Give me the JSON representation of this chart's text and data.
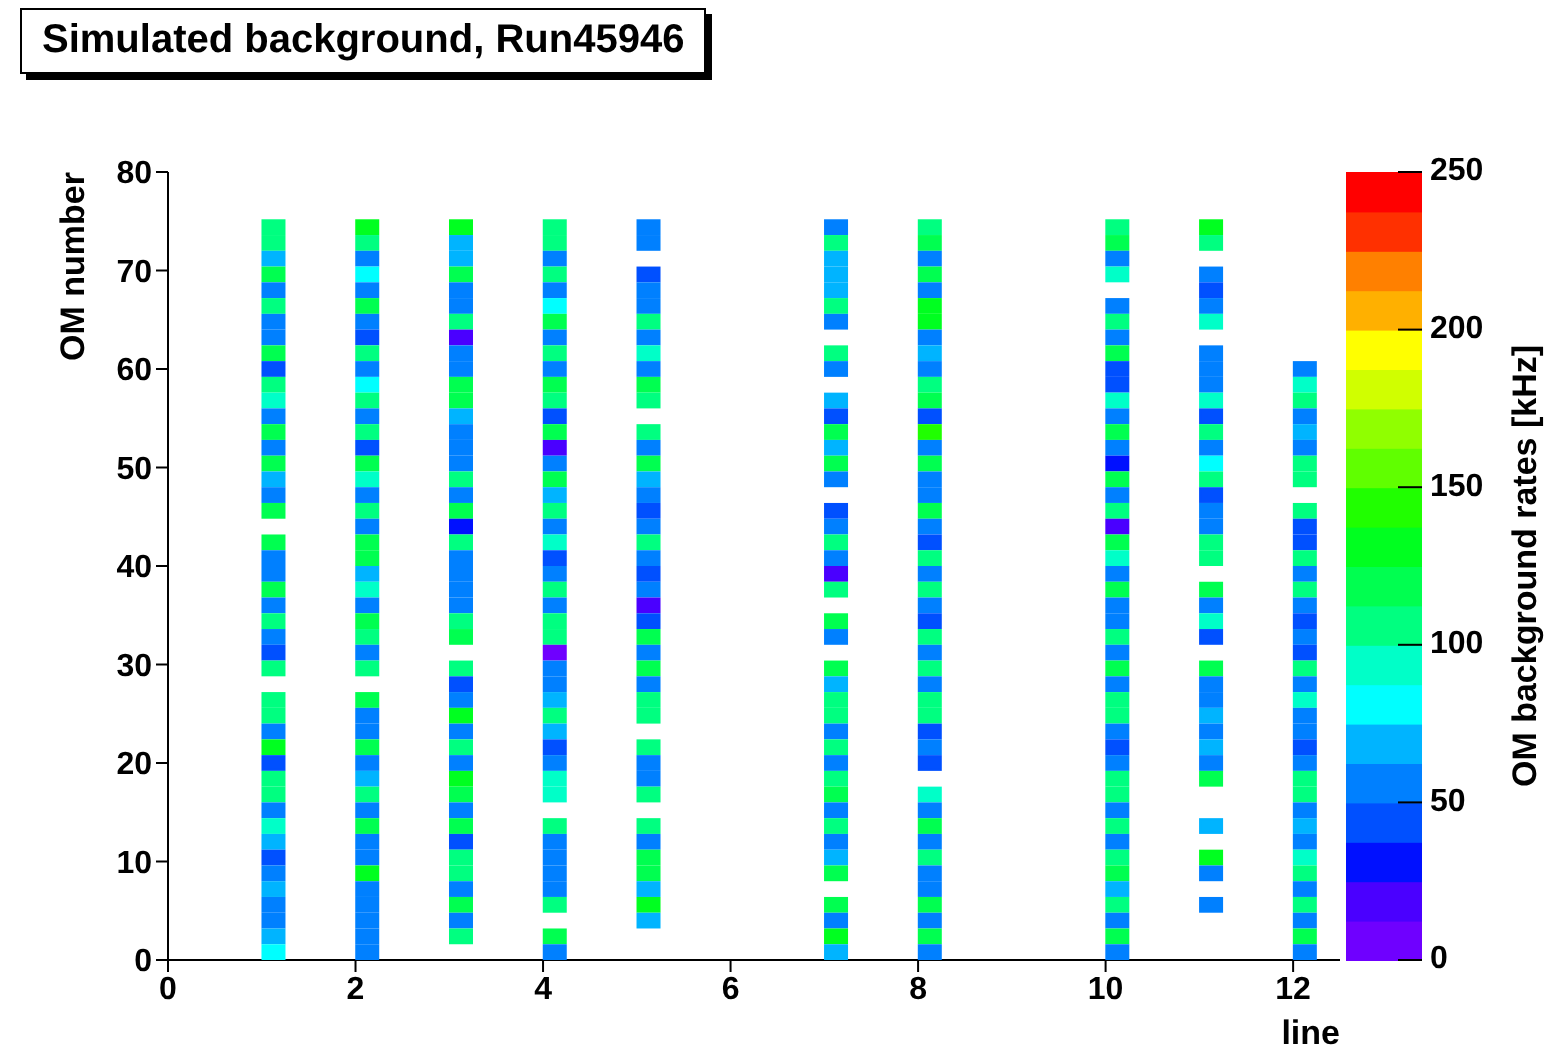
{
  "chart_data": {
    "type": "scatter",
    "title": "Simulated background, Run45946",
    "xlabel": "line",
    "ylabel": "OM number",
    "clabel": "OM background rates [kHz]",
    "marker": "square",
    "xlim": [
      0,
      12.5
    ],
    "xticks": [
      0,
      2,
      4,
      6,
      8,
      10,
      12
    ],
    "ylim": [
      0,
      80
    ],
    "yticks": [
      0,
      10,
      20,
      30,
      40,
      50,
      60,
      70,
      80
    ],
    "clim": [
      0,
      250
    ],
    "cticks": [
      0,
      50,
      100,
      150,
      200,
      250
    ],
    "series": [
      {
        "x": [
          1.125,
          1.125,
          1.125,
          1.125,
          1.125,
          1.125,
          1.125,
          1.125,
          1.125,
          1.125,
          1.125,
          1.125,
          1.125,
          1.125,
          1.125,
          1.125,
          1.125,
          1.125,
          1.125,
          null,
          1.125,
          1.125,
          1.125,
          1.125,
          1.125,
          1.125,
          1.125,
          1.125,
          1.125,
          null,
          1.125,
          1.125,
          1.125,
          1.125,
          1.125,
          1.125,
          1.125,
          1.125,
          1.125,
          1.125,
          1.125,
          1.125,
          1.125,
          1.125,
          1.125,
          1.125,
          1.125
        ],
        "values": [
          74.4,
          72.8,
          71.2,
          69.6,
          68,
          66.4,
          64.8,
          63.2,
          61.6,
          60,
          58.4,
          56.8,
          55.2,
          53.6,
          52,
          50.4,
          48.8,
          47.2,
          45.6,
          null,
          42.4,
          40.8,
          39.2,
          37.6,
          36,
          34.4,
          32.8,
          31.2,
          29.6,
          null,
          26.4,
          24.8,
          23.2,
          21.6,
          20,
          18.4,
          16.8,
          15.2,
          13.6,
          12,
          10.4,
          8.8,
          7.2,
          5.6,
          4,
          2.4,
          0.8
        ],
        "cvalues": [
          106,
          106,
          69,
          119,
          56,
          106,
          56,
          56,
          119,
          44,
          106,
          94,
          56,
          119,
          56,
          119,
          69,
          56,
          119,
          null,
          119,
          56,
          56,
          119,
          56,
          106,
          56,
          44,
          106,
          null,
          106,
          106,
          56,
          131,
          44,
          106,
          106,
          56,
          94,
          69,
          44,
          56,
          69,
          56,
          56,
          69,
          81
        ],
        "colors": [
          "#00ff80",
          "#00ff80",
          "#00b4ff",
          "#00ff50",
          "#0080ff",
          "#00ff80",
          "#0080ff",
          "#0080ff",
          "#00ff50",
          "#0050ff",
          "#00ff80",
          "#00ffc8",
          "#0080ff",
          "#00ff50",
          "#0080ff",
          "#00ff50",
          "#00b4ff",
          "#0080ff",
          "#00ff50",
          null,
          "#00ff50",
          "#0080ff",
          "#0080ff",
          "#00ff50",
          "#0080ff",
          "#00ff80",
          "#0080ff",
          "#0050ff",
          "#00ff80",
          null,
          "#00ff80",
          "#00ff80",
          "#0080ff",
          "#00ff20",
          "#0050ff",
          "#00ff80",
          "#00ff80",
          "#0080ff",
          "#00ffc8",
          "#00b4ff",
          "#0050ff",
          "#0080ff",
          "#00b4ff",
          "#0080ff",
          "#0080ff",
          "#00b4ff",
          "#00ffff"
        ]
      },
      {
        "x": [
          2.125,
          2.125,
          2.125,
          2.125,
          2.125,
          2.125,
          2.125,
          2.125,
          2.125,
          2.125,
          2.125,
          2.125,
          2.125,
          2.125,
          2.125,
          2.125,
          2.125,
          2.125,
          2.125,
          2.125,
          2.125,
          2.125,
          2.125,
          2.125,
          2.125,
          2.125,
          2.125,
          2.125,
          2.125,
          null,
          2.125,
          2.125,
          2.125,
          2.125,
          2.125,
          2.125,
          2.125,
          2.125,
          2.125,
          2.125,
          2.125,
          2.125,
          2.125,
          2.125,
          2.125,
          2.125,
          2.125
        ],
        "values": [
          74.4,
          72.8,
          71.2,
          69.6,
          68,
          66.4,
          64.8,
          63.2,
          61.6,
          60,
          58.4,
          56.8,
          55.2,
          53.6,
          52,
          50.4,
          48.8,
          47.2,
          45.6,
          44,
          42.4,
          40.8,
          39.2,
          37.6,
          36,
          34.4,
          32.8,
          31.2,
          29.6,
          null,
          26.4,
          24.8,
          23.2,
          21.6,
          20,
          18.4,
          16.8,
          15.2,
          13.6,
          12,
          10.4,
          8.8,
          7.2,
          5.6,
          4,
          2.4,
          0.8
        ],
        "cvalues": [
          131,
          106,
          56,
          81,
          56,
          119,
          56,
          44,
          106,
          56,
          81,
          106,
          56,
          106,
          44,
          119,
          94,
          56,
          106,
          56,
          119,
          119,
          69,
          94,
          56,
          119,
          106,
          56,
          106,
          null,
          119,
          56,
          56,
          119,
          56,
          69,
          106,
          56,
          119,
          56,
          56,
          131,
          56,
          56,
          56,
          56,
          56
        ],
        "colors": [
          "#00ff20",
          "#00ff80",
          "#0080ff",
          "#00ffff",
          "#0080ff",
          "#00ff50",
          "#0080ff",
          "#0050ff",
          "#00ff80",
          "#0080ff",
          "#00ffff",
          "#00ff80",
          "#0080ff",
          "#00ff80",
          "#0050ff",
          "#00ff50",
          "#00ffc8",
          "#0080ff",
          "#00ff80",
          "#0080ff",
          "#00ff50",
          "#00ff50",
          "#00b4ff",
          "#00ffc8",
          "#0080ff",
          "#00ff50",
          "#00ff80",
          "#0080ff",
          "#00ff80",
          null,
          "#00ff50",
          "#0080ff",
          "#0080ff",
          "#00ff50",
          "#0080ff",
          "#00b4ff",
          "#00ff80",
          "#0080ff",
          "#00ff50",
          "#0080ff",
          "#0080ff",
          "#00ff20",
          "#0080ff",
          "#0080ff",
          "#0080ff",
          "#0080ff",
          "#0080ff"
        ]
      },
      {
        "x": [
          3.125,
          3.125,
          3.125,
          3.125,
          3.125,
          3.125,
          3.125,
          3.125,
          3.125,
          3.125,
          3.125,
          3.125,
          3.125,
          3.125,
          3.125,
          3.125,
          3.125,
          3.125,
          3.125,
          3.125,
          3.125,
          3.125,
          3.125,
          3.125,
          3.125,
          3.125,
          3.125,
          null,
          3.125,
          3.125,
          3.125,
          3.125,
          3.125,
          3.125,
          3.125,
          3.125,
          3.125,
          3.125,
          3.125,
          3.125,
          3.125,
          3.125,
          3.125,
          3.125,
          3.125,
          3.125,
          null
        ],
        "values": [
          74.4,
          72.8,
          71.2,
          69.6,
          68,
          66.4,
          64.8,
          63.2,
          61.6,
          60,
          58.4,
          56.8,
          55.2,
          53.6,
          52,
          50.4,
          48.8,
          47.2,
          45.6,
          44,
          42.4,
          40.8,
          39.2,
          37.6,
          36,
          34.4,
          32.8,
          null,
          29.6,
          28,
          26.4,
          24.8,
          23.2,
          21.6,
          20,
          18.4,
          16.8,
          15.2,
          13.6,
          12,
          10.4,
          8.8,
          7.2,
          5.6,
          4,
          2.4,
          null
        ],
        "cvalues": [
          131,
          69,
          69,
          119,
          56,
          56,
          106,
          19,
          56,
          56,
          119,
          119,
          69,
          56,
          56,
          56,
          106,
          56,
          119,
          31,
          106,
          56,
          56,
          56,
          56,
          106,
          119,
          null,
          106,
          44,
          56,
          131,
          56,
          106,
          56,
          131,
          119,
          56,
          119,
          44,
          106,
          106,
          56,
          119,
          56,
          106,
          null
        ],
        "colors": [
          "#00ff20",
          "#00b4ff",
          "#00b4ff",
          "#00ff50",
          "#0080ff",
          "#0080ff",
          "#00ff80",
          "#4a00ff",
          "#0080ff",
          "#0080ff",
          "#00ff50",
          "#00ff50",
          "#00b4ff",
          "#0080ff",
          "#0080ff",
          "#0080ff",
          "#00ff80",
          "#0080ff",
          "#00ff50",
          "#0010ff",
          "#00ff80",
          "#0080ff",
          "#0080ff",
          "#0080ff",
          "#0080ff",
          "#00ff80",
          "#00ff50",
          null,
          "#00ff80",
          "#0050ff",
          "#0080ff",
          "#00ff20",
          "#0080ff",
          "#00ff80",
          "#0080ff",
          "#00ff20",
          "#00ff50",
          "#0080ff",
          "#00ff50",
          "#0050ff",
          "#00ff80",
          "#00ff80",
          "#0080ff",
          "#00ff50",
          "#0080ff",
          "#00ff80",
          null
        ]
      },
      {
        "x": [
          4.125,
          4.125,
          4.125,
          4.125,
          4.125,
          4.125,
          4.125,
          4.125,
          4.125,
          4.125,
          4.125,
          4.125,
          4.125,
          4.125,
          4.125,
          4.125,
          4.125,
          4.125,
          4.125,
          4.125,
          4.125,
          4.125,
          4.125,
          4.125,
          4.125,
          4.125,
          4.125,
          4.125,
          4.125,
          4.125,
          4.125,
          4.125,
          4.125,
          4.125,
          4.125,
          4.125,
          4.125,
          null,
          4.125,
          4.125,
          4.125,
          4.125,
          4.125,
          4.125,
          null,
          4.125,
          4.125
        ],
        "values": [
          74.4,
          72.8,
          71.2,
          69.6,
          68,
          66.4,
          64.8,
          63.2,
          61.6,
          60,
          58.4,
          56.8,
          55.2,
          53.6,
          52,
          50.4,
          48.8,
          47.2,
          45.6,
          44,
          42.4,
          40.8,
          39.2,
          37.6,
          36,
          34.4,
          32.8,
          31.2,
          29.6,
          28,
          26.4,
          24.8,
          23.2,
          21.6,
          20,
          18.4,
          16.8,
          null,
          13.6,
          12,
          10.4,
          8.8,
          7.2,
          5.6,
          null,
          2.4,
          0.8
        ],
        "cvalues": [
          106,
          106,
          56,
          106,
          56,
          81,
          119,
          56,
          106,
          56,
          119,
          106,
          44,
          119,
          19,
          56,
          119,
          69,
          106,
          56,
          94,
          44,
          56,
          106,
          56,
          106,
          106,
          6,
          56,
          56,
          69,
          106,
          69,
          44,
          56,
          94,
          94,
          null,
          106,
          56,
          56,
          56,
          56,
          106,
          null,
          119,
          56
        ],
        "colors": [
          "#00ff80",
          "#00ff80",
          "#0080ff",
          "#00ff80",
          "#0080ff",
          "#00ffff",
          "#00ff50",
          "#0080ff",
          "#00ff80",
          "#0080ff",
          "#00ff50",
          "#00ff80",
          "#0050ff",
          "#00ff50",
          "#4a00ff",
          "#0080ff",
          "#00ff50",
          "#00b4ff",
          "#00ff80",
          "#0080ff",
          "#00ffc8",
          "#0050ff",
          "#0080ff",
          "#00ff80",
          "#0080ff",
          "#00ff80",
          "#00ff80",
          "#6f00ff",
          "#0080ff",
          "#0080ff",
          "#00b4ff",
          "#00ff80",
          "#00b4ff",
          "#0050ff",
          "#0080ff",
          "#00ffc8",
          "#00ffc8",
          null,
          "#00ff80",
          "#0080ff",
          "#0080ff",
          "#0080ff",
          "#0080ff",
          "#00ff80",
          null,
          "#00ff50",
          "#0080ff"
        ]
      },
      {
        "x": [
          5.125,
          5.125,
          null,
          5.125,
          5.125,
          5.125,
          5.125,
          5.125,
          5.125,
          5.125,
          5.125,
          5.125,
          null,
          5.125,
          5.125,
          5.125,
          5.125,
          5.125,
          5.125,
          5.125,
          5.125,
          5.125,
          5.125,
          5.125,
          5.125,
          5.125,
          5.125,
          5.125,
          5.125,
          5.125,
          5.125,
          5.125,
          null,
          5.125,
          5.125,
          5.125,
          5.125,
          null,
          5.125,
          5.125,
          5.125,
          5.125,
          5.125,
          5.125,
          5.125,
          null,
          null
        ],
        "values": [
          74.4,
          72.8,
          null,
          69.6,
          68,
          66.4,
          64.8,
          63.2,
          61.6,
          60,
          58.4,
          56.8,
          null,
          53.6,
          52,
          50.4,
          48.8,
          47.2,
          45.6,
          44,
          42.4,
          40.8,
          39.2,
          37.6,
          36,
          34.4,
          32.8,
          31.2,
          29.6,
          28,
          26.4,
          24.8,
          null,
          21.6,
          20,
          18.4,
          16.8,
          null,
          13.6,
          12,
          10.4,
          8.8,
          7.2,
          5.6,
          4,
          null,
          null
        ],
        "cvalues": [
          56,
          56,
          null,
          44,
          56,
          56,
          106,
          56,
          94,
          56,
          119,
          106,
          null,
          106,
          56,
          119,
          69,
          56,
          44,
          56,
          106,
          56,
          44,
          56,
          19,
          44,
          119,
          56,
          119,
          56,
          106,
          106,
          null,
          106,
          56,
          56,
          106,
          null,
          106,
          56,
          119,
          119,
          69,
          131,
          69,
          null,
          null
        ],
        "colors": [
          "#0080ff",
          "#0080ff",
          null,
          "#0050ff",
          "#0080ff",
          "#0080ff",
          "#00ff80",
          "#0080ff",
          "#00ffc8",
          "#0080ff",
          "#00ff50",
          "#00ff80",
          null,
          "#00ff80",
          "#0080ff",
          "#00ff50",
          "#00b4ff",
          "#0080ff",
          "#0050ff",
          "#0080ff",
          "#00ff80",
          "#0080ff",
          "#0050ff",
          "#0080ff",
          "#4a00ff",
          "#0050ff",
          "#00ff50",
          "#0080ff",
          "#00ff50",
          "#0080ff",
          "#00ff80",
          "#00ff80",
          null,
          "#00ff80",
          "#0080ff",
          "#0080ff",
          "#00ff80",
          null,
          "#00ff80",
          "#0080ff",
          "#00ff50",
          "#00ff50",
          "#00b4ff",
          "#00ff20",
          "#00b4ff",
          null,
          null
        ]
      },
      {
        "x": [
          7.125,
          7.125,
          7.125,
          7.125,
          7.125,
          7.125,
          7.125,
          null,
          7.125,
          7.125,
          null,
          7.125,
          7.125,
          7.125,
          7.125,
          7.125,
          7.125,
          null,
          7.125,
          7.125,
          7.125,
          7.125,
          7.125,
          7.125,
          null,
          7.125,
          7.125,
          null,
          7.125,
          7.125,
          7.125,
          7.125,
          7.125,
          7.125,
          7.125,
          7.125,
          7.125,
          7.125,
          7.125,
          7.125,
          7.125,
          7.125,
          null,
          7.125,
          7.125,
          7.125,
          7.125
        ],
        "values": [
          74.4,
          72.8,
          71.2,
          69.6,
          68,
          66.4,
          64.8,
          null,
          61.6,
          60,
          null,
          56.8,
          55.2,
          53.6,
          52,
          50.4,
          48.8,
          null,
          45.6,
          44,
          42.4,
          40.8,
          39.2,
          37.6,
          null,
          34.4,
          32.8,
          null,
          29.6,
          28,
          26.4,
          24.8,
          23.2,
          21.6,
          20,
          18.4,
          16.8,
          15.2,
          13.6,
          12,
          10.4,
          8.8,
          null,
          5.6,
          4,
          2.4,
          0.8
        ],
        "cvalues": [
          56,
          106,
          69,
          69,
          69,
          106,
          56,
          null,
          106,
          56,
          null,
          69,
          44,
          119,
          69,
          119,
          56,
          null,
          44,
          56,
          106,
          56,
          19,
          106,
          null,
          119,
          56,
          null,
          119,
          69,
          106,
          106,
          56,
          106,
          56,
          106,
          119,
          56,
          106,
          56,
          69,
          119,
          null,
          119,
          56,
          131,
          69
        ],
        "colors": [
          "#0080ff",
          "#00ff80",
          "#00b4ff",
          "#00b4ff",
          "#00b4ff",
          "#00ff80",
          "#0080ff",
          null,
          "#00ff80",
          "#0080ff",
          null,
          "#00b4ff",
          "#0050ff",
          "#00ff50",
          "#00b4ff",
          "#00ff50",
          "#0080ff",
          null,
          "#0050ff",
          "#0080ff",
          "#00ff80",
          "#0080ff",
          "#4a00ff",
          "#00ff80",
          null,
          "#00ff50",
          "#0080ff",
          null,
          "#00ff50",
          "#00b4ff",
          "#00ff80",
          "#00ff80",
          "#0080ff",
          "#00ff80",
          "#0080ff",
          "#00ff80",
          "#00ff50",
          "#0080ff",
          "#00ff80",
          "#0080ff",
          "#00b4ff",
          "#00ff50",
          null,
          "#00ff50",
          "#0080ff",
          "#00ff20",
          "#00b4ff"
        ]
      },
      {
        "x": [
          8.125,
          8.125,
          8.125,
          8.125,
          8.125,
          8.125,
          8.125,
          8.125,
          8.125,
          8.125,
          8.125,
          8.125,
          8.125,
          8.125,
          8.125,
          8.125,
          8.125,
          8.125,
          8.125,
          8.125,
          8.125,
          8.125,
          8.125,
          8.125,
          8.125,
          8.125,
          8.125,
          8.125,
          8.125,
          8.125,
          8.125,
          8.125,
          8.125,
          8.125,
          8.125,
          null,
          8.125,
          8.125,
          8.125,
          8.125,
          8.125,
          8.125,
          8.125,
          8.125,
          8.125,
          8.125,
          8.125
        ],
        "values": [
          74.4,
          72.8,
          71.2,
          69.6,
          68,
          66.4,
          64.8,
          63.2,
          61.6,
          60,
          58.4,
          56.8,
          55.2,
          53.6,
          52,
          50.4,
          48.8,
          47.2,
          45.6,
          44,
          42.4,
          40.8,
          39.2,
          37.6,
          36,
          34.4,
          32.8,
          31.2,
          29.6,
          28,
          26.4,
          24.8,
          23.2,
          21.6,
          20,
          null,
          16.8,
          15.2,
          13.6,
          12,
          10.4,
          8.8,
          7.2,
          5.6,
          4,
          2.4,
          0.8
        ],
        "cvalues": [
          106,
          119,
          56,
          119,
          56,
          131,
          131,
          56,
          69,
          56,
          106,
          119,
          44,
          144,
          56,
          119,
          56,
          56,
          119,
          56,
          44,
          106,
          56,
          106,
          56,
          44,
          106,
          56,
          106,
          56,
          106,
          106,
          44,
          56,
          44,
          null,
          94,
          56,
          119,
          56,
          106,
          56,
          56,
          119,
          56,
          119,
          56
        ],
        "colors": [
          "#00ff80",
          "#00ff50",
          "#0080ff",
          "#00ff50",
          "#0080ff",
          "#00ff20",
          "#00ff20",
          "#0080ff",
          "#00b4ff",
          "#0080ff",
          "#00ff80",
          "#00ff50",
          "#0050ff",
          "#20ff00",
          "#0080ff",
          "#00ff50",
          "#0080ff",
          "#0080ff",
          "#00ff50",
          "#0080ff",
          "#0050ff",
          "#00ff80",
          "#0080ff",
          "#00ff80",
          "#0080ff",
          "#0050ff",
          "#00ff80",
          "#0080ff",
          "#00ff80",
          "#0080ff",
          "#00ff80",
          "#00ff80",
          "#0050ff",
          "#0080ff",
          "#0050ff",
          null,
          "#00ffc8",
          "#0080ff",
          "#00ff50",
          "#0080ff",
          "#00ff80",
          "#0080ff",
          "#0080ff",
          "#00ff50",
          "#0080ff",
          "#00ff50",
          "#0080ff"
        ]
      },
      {
        "x": [
          10.125,
          10.125,
          10.125,
          10.125,
          null,
          10.125,
          10.125,
          10.125,
          10.125,
          10.125,
          10.125,
          10.125,
          10.125,
          10.125,
          10.125,
          10.125,
          10.125,
          10.125,
          10.125,
          10.125,
          10.125,
          10.125,
          10.125,
          10.125,
          10.125,
          10.125,
          10.125,
          10.125,
          10.125,
          10.125,
          10.125,
          10.125,
          10.125,
          10.125,
          10.125,
          10.125,
          10.125,
          10.125,
          10.125,
          10.125,
          10.125,
          10.125,
          10.125,
          10.125,
          10.125,
          10.125,
          10.125
        ],
        "values": [
          74.4,
          72.8,
          71.2,
          69.6,
          null,
          66.4,
          64.8,
          63.2,
          61.6,
          60,
          58.4,
          56.8,
          55.2,
          53.6,
          52,
          50.4,
          48.8,
          47.2,
          45.6,
          44,
          42.4,
          40.8,
          39.2,
          37.6,
          36,
          34.4,
          32.8,
          31.2,
          29.6,
          28,
          26.4,
          24.8,
          23.2,
          21.6,
          20,
          18.4,
          16.8,
          15.2,
          13.6,
          12,
          10.4,
          8.8,
          7.2,
          5.6,
          4,
          2.4,
          0.8
        ],
        "cvalues": [
          106,
          119,
          56,
          94,
          null,
          56,
          106,
          56,
          119,
          44,
          44,
          94,
          56,
          119,
          56,
          31,
          119,
          56,
          106,
          19,
          119,
          94,
          56,
          119,
          56,
          56,
          106,
          56,
          119,
          56,
          106,
          106,
          56,
          44,
          56,
          106,
          106,
          56,
          106,
          56,
          106,
          119,
          69,
          106,
          56,
          119,
          56
        ],
        "colors": [
          "#00ff80",
          "#00ff50",
          "#0080ff",
          "#00ffc8",
          null,
          "#0080ff",
          "#00ff80",
          "#0080ff",
          "#00ff50",
          "#0050ff",
          "#0050ff",
          "#00ffc8",
          "#0080ff",
          "#00ff50",
          "#0080ff",
          "#0010ff",
          "#00ff50",
          "#0080ff",
          "#00ff80",
          "#4a00ff",
          "#00ff50",
          "#00ffc8",
          "#0080ff",
          "#00ff50",
          "#0080ff",
          "#0080ff",
          "#00ff80",
          "#0080ff",
          "#00ff50",
          "#0080ff",
          "#00ff80",
          "#00ff80",
          "#0080ff",
          "#0050ff",
          "#0080ff",
          "#00ff80",
          "#00ff80",
          "#0080ff",
          "#00ff80",
          "#0080ff",
          "#00ff80",
          "#00ff50",
          "#00b4ff",
          "#00ff80",
          "#0080ff",
          "#00ff50",
          "#0080ff"
        ]
      },
      {
        "x": [
          11.125,
          11.125,
          null,
          11.125,
          11.125,
          11.125,
          11.125,
          null,
          11.125,
          11.125,
          11.125,
          11.125,
          11.125,
          11.125,
          11.125,
          11.125,
          11.125,
          11.125,
          11.125,
          11.125,
          11.125,
          11.125,
          null,
          11.125,
          11.125,
          11.125,
          11.125,
          null,
          11.125,
          11.125,
          11.125,
          11.125,
          11.125,
          11.125,
          11.125,
          11.125,
          null,
          null,
          11.125,
          null,
          11.125,
          11.125,
          null,
          11.125,
          null,
          null,
          null
        ],
        "values": [
          74.4,
          72.8,
          null,
          69.6,
          68,
          66.4,
          64.8,
          null,
          61.6,
          60,
          58.4,
          56.8,
          55.2,
          53.6,
          52,
          50.4,
          48.8,
          47.2,
          45.6,
          44,
          42.4,
          40.8,
          null,
          37.6,
          36,
          34.4,
          32.8,
          null,
          29.6,
          28,
          26.4,
          24.8,
          23.2,
          21.6,
          20,
          18.4,
          null,
          null,
          13.6,
          null,
          10.4,
          8.8,
          null,
          5.6,
          null,
          null,
          null
        ],
        "cvalues": [
          131,
          106,
          null,
          56,
          44,
          56,
          94,
          null,
          56,
          56,
          56,
          94,
          44,
          106,
          56,
          81,
          106,
          44,
          56,
          56,
          106,
          106,
          null,
          119,
          56,
          94,
          44,
          null,
          119,
          56,
          56,
          69,
          56,
          69,
          56,
          119,
          null,
          null,
          69,
          null,
          131,
          56,
          null,
          56,
          null,
          null,
          null
        ],
        "colors": [
          "#00ff20",
          "#00ff80",
          null,
          "#0080ff",
          "#0050ff",
          "#0080ff",
          "#00ffc8",
          null,
          "#0080ff",
          "#0080ff",
          "#0080ff",
          "#00ffc8",
          "#0050ff",
          "#00ff80",
          "#0080ff",
          "#00ffff",
          "#00ff80",
          "#0050ff",
          "#0080ff",
          "#0080ff",
          "#00ff80",
          "#00ff80",
          null,
          "#00ff50",
          "#0080ff",
          "#00ffc8",
          "#0050ff",
          null,
          "#00ff50",
          "#0080ff",
          "#0080ff",
          "#00b4ff",
          "#0080ff",
          "#00b4ff",
          "#0080ff",
          "#00ff50",
          null,
          null,
          "#00b4ff",
          null,
          "#00ff20",
          "#0080ff",
          null,
          "#0080ff",
          null,
          null,
          null
        ]
      },
      {
        "x": [
          null,
          null,
          null,
          null,
          null,
          null,
          null,
          null,
          null,
          12.125,
          12.125,
          12.125,
          12.125,
          12.125,
          12.125,
          12.125,
          12.125,
          null,
          12.125,
          12.125,
          12.125,
          12.125,
          12.125,
          12.125,
          12.125,
          12.125,
          12.125,
          12.125,
          12.125,
          12.125,
          12.125,
          12.125,
          12.125,
          12.125,
          12.125,
          12.125,
          12.125,
          12.125,
          12.125,
          12.125,
          12.125,
          12.125,
          12.125,
          12.125,
          12.125,
          12.125,
          12.125
        ],
        "values": [
          null,
          null,
          null,
          null,
          null,
          null,
          null,
          null,
          null,
          60,
          58.4,
          56.8,
          55.2,
          53.6,
          52,
          50.4,
          48.8,
          null,
          45.6,
          44,
          42.4,
          40.8,
          39.2,
          37.6,
          36,
          34.4,
          32.8,
          31.2,
          29.6,
          28,
          26.4,
          24.8,
          23.2,
          21.6,
          20,
          18.4,
          16.8,
          15.2,
          13.6,
          12,
          10.4,
          8.8,
          7.2,
          5.6,
          4,
          2.4,
          0.8
        ],
        "cvalues": [
          null,
          null,
          null,
          null,
          null,
          null,
          null,
          null,
          null,
          56,
          94,
          106,
          56,
          69,
          56,
          106,
          106,
          null,
          106,
          44,
          44,
          106,
          56,
          106,
          56,
          44,
          56,
          44,
          106,
          56,
          94,
          56,
          56,
          44,
          56,
          106,
          106,
          56,
          69,
          56,
          94,
          106,
          56,
          106,
          56,
          119,
          56
        ],
        "colors": [
          null,
          null,
          null,
          null,
          null,
          null,
          null,
          null,
          null,
          "#0080ff",
          "#00ffc8",
          "#00ff80",
          "#0080ff",
          "#00b4ff",
          "#0080ff",
          "#00ff80",
          "#00ff80",
          null,
          "#00ff80",
          "#0050ff",
          "#0050ff",
          "#00ff80",
          "#0080ff",
          "#00ff80",
          "#0080ff",
          "#0050ff",
          "#0080ff",
          "#0050ff",
          "#00ff80",
          "#0080ff",
          "#00ffc8",
          "#0080ff",
          "#0080ff",
          "#0050ff",
          "#0080ff",
          "#00ff80",
          "#00ff80",
          "#0080ff",
          "#00b4ff",
          "#0080ff",
          "#00ffc8",
          "#00ff80",
          "#0080ff",
          "#00ff80",
          "#0080ff",
          "#00ff50",
          "#0080ff"
        ]
      }
    ]
  }
}
